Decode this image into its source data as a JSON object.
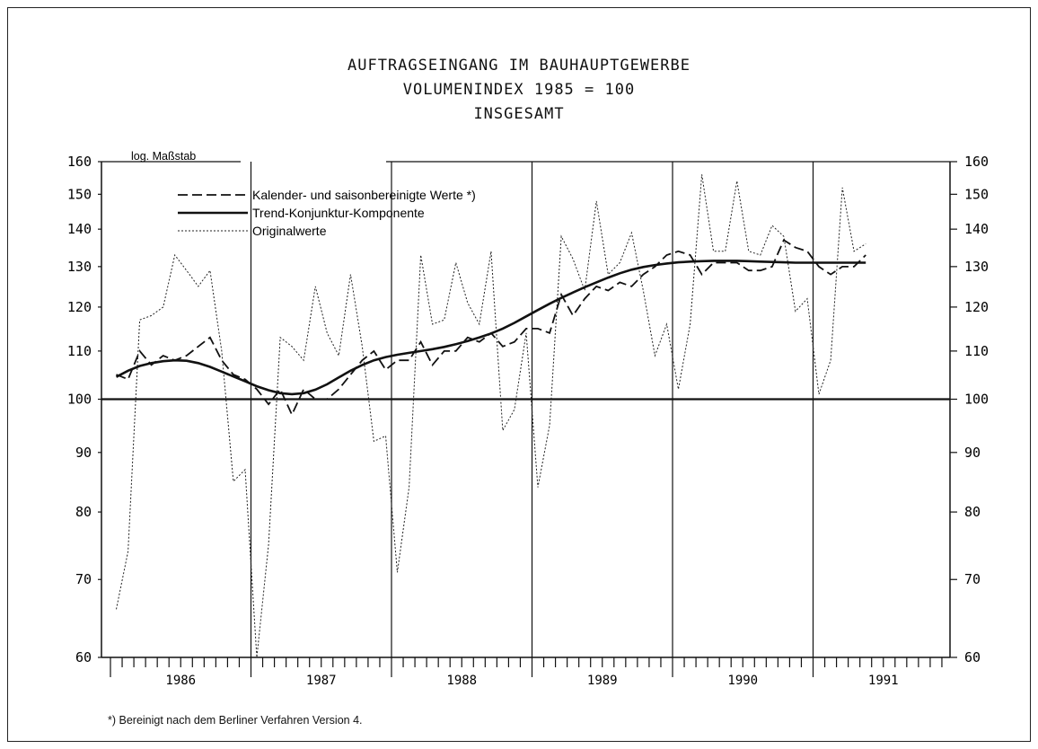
{
  "title_lines": [
    "AUFTRAGSEINGANG IM BAUHAUPTGEWERBE",
    "VOLUMENINDEX 1985 = 100",
    "INSGESAMT"
  ],
  "footnote": "*) Bereinigt nach dem Berliner Verfahren Version 4.",
  "chart_data": {
    "type": "line",
    "scale_label": "log. Maßstab",
    "y_scale": "log",
    "ylim": [
      60,
      160
    ],
    "y_ticks": [
      60,
      70,
      80,
      90,
      100,
      110,
      120,
      130,
      140,
      150,
      160
    ],
    "year_labels": [
      "1986",
      "1987",
      "1988",
      "1989",
      "1990",
      "1991"
    ],
    "reference_line": 100,
    "legend": [
      {
        "label": "Kalender- und saisonbereinigte Werte *)",
        "style": "dashed"
      },
      {
        "label": "Trend-Konjunktur-Komponente",
        "style": "solid"
      },
      {
        "label": "Originalwerte",
        "style": "dotted"
      }
    ],
    "x_start": "1986-01",
    "series": [
      {
        "name": "Kalender- und saisonbereinigte Werte *)",
        "style": "dashed",
        "values": [
          105,
          104,
          110,
          107,
          109,
          108,
          109,
          111,
          113,
          108,
          105,
          104,
          102,
          99,
          102,
          97,
          102,
          100,
          100,
          102,
          105,
          108,
          110,
          106,
          108,
          108,
          112,
          107,
          110,
          110,
          113,
          112,
          114,
          111,
          112,
          115,
          115,
          114,
          123,
          118,
          122,
          125,
          124,
          126,
          125,
          128,
          130,
          133,
          134,
          133,
          128,
          131,
          131,
          131,
          129,
          129,
          130,
          137,
          135,
          134,
          130,
          128,
          130,
          130,
          133
        ]
      },
      {
        "name": "Trend-Konjunktur-Komponente",
        "style": "solid",
        "values": [
          104.5,
          105.8,
          106.8,
          107.4,
          107.8,
          108,
          107.9,
          107.4,
          106.6,
          105.6,
          104.6,
          103.6,
          102.6,
          101.8,
          101.2,
          101,
          101.2,
          101.9,
          103,
          104.4,
          105.8,
          107,
          108,
          108.7,
          109.2,
          109.6,
          110,
          110.4,
          110.9,
          111.5,
          112.2,
          113,
          113.9,
          115,
          116.3,
          117.8,
          119.3,
          120.8,
          122.2,
          123.5,
          124.8,
          126,
          127.2,
          128.3,
          129.2,
          129.9,
          130.4,
          130.8,
          131.1,
          131.3,
          131.4,
          131.5,
          131.5,
          131.5,
          131.4,
          131.3,
          131.2,
          131.1,
          131,
          131,
          131,
          131,
          131,
          131,
          131
        ]
      },
      {
        "name": "Originalwerte",
        "style": "dotted",
        "values": [
          66,
          74,
          117,
          118,
          120,
          133,
          129,
          125,
          129,
          110,
          85,
          87,
          60,
          75,
          113,
          111,
          108,
          125,
          114,
          109,
          128,
          111,
          92,
          93,
          71,
          84,
          133,
          116,
          117,
          131,
          121,
          116,
          134,
          94,
          98,
          114,
          84,
          95,
          138,
          132,
          124,
          148,
          128,
          131,
          139,
          124,
          109,
          116,
          102,
          116,
          156,
          134,
          134,
          154,
          134,
          133,
          141,
          138,
          119,
          122,
          101,
          108,
          152,
          134,
          136
        ]
      }
    ]
  }
}
